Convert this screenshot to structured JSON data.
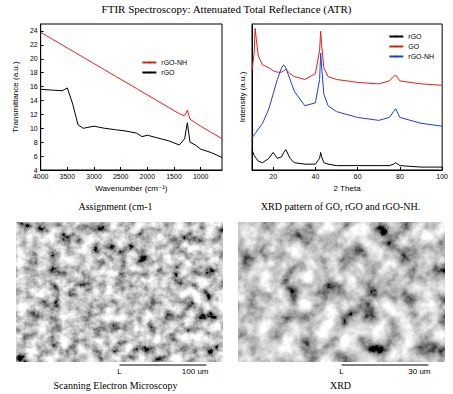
{
  "title": "FTIR Spectroscopy: Attenuated Total Reflectance (ATR)",
  "chart_data": [
    {
      "type": "line",
      "x_label": "Wavenumber (cm⁻¹)",
      "y_label": "Transmittance (a.u.)",
      "x": [
        4000,
        3800,
        3600,
        3500,
        3400,
        3300,
        3200,
        3000,
        2800,
        2600,
        2400,
        2200,
        2100,
        2000,
        1800,
        1600,
        1400,
        1300,
        1250,
        1200,
        1100,
        1000,
        800,
        600
      ],
      "series": [
        {
          "name": "rGO-NH",
          "color": "#e0201b",
          "values": [
            23.8,
            22.9,
            22.0,
            21.55,
            21.1,
            20.65,
            20.2,
            19.3,
            18.4,
            17.5,
            16.6,
            15.7,
            15.25,
            14.8,
            13.9,
            13.0,
            12.1,
            11.8,
            12.6,
            11.3,
            10.8,
            10.3,
            9.4,
            8.5
          ]
        },
        {
          "name": "rGO",
          "color": "#000000",
          "values": [
            15.6,
            15.5,
            15.4,
            15.8,
            13.5,
            10.5,
            10.0,
            10.3,
            10.0,
            9.8,
            9.6,
            9.3,
            8.8,
            9.0,
            8.6,
            8.2,
            7.6,
            8.5,
            10.8,
            8.0,
            7.6,
            7.0,
            6.5,
            5.8
          ]
        }
      ],
      "xlim": [
        4000,
        600
      ],
      "xticks": [
        4000,
        3500,
        3000,
        2500,
        2000,
        1500,
        1000
      ],
      "ylim": [
        4,
        25
      ],
      "yticks": [
        4,
        6,
        8,
        10,
        12,
        14,
        16,
        18,
        20,
        22,
        24
      ],
      "grid": false,
      "legend": "right"
    },
    {
      "type": "line",
      "x_label": "2 Theta",
      "y_label": "Intensity (a.u.)",
      "x": [
        10,
        11,
        11.5,
        12,
        13,
        15,
        18,
        20,
        22,
        24,
        25,
        26,
        28,
        30,
        35,
        40,
        42,
        42.5,
        43,
        44,
        46,
        50,
        60,
        70,
        75,
        77,
        78,
        80,
        90,
        100
      ],
      "series": [
        {
          "name": "rGO",
          "color": "#000000",
          "values": [
            14,
            10,
            9,
            8,
            6,
            5,
            8,
            12,
            8,
            9,
            12,
            14,
            8,
            5,
            4,
            4,
            8,
            12,
            9,
            5,
            4,
            3,
            3,
            3,
            3,
            4,
            5,
            3,
            2,
            2
          ]
        },
        {
          "name": "GO",
          "color": "#e0201b",
          "values": [
            68,
            80,
            97,
            90,
            78,
            72,
            70,
            68,
            67,
            67,
            68,
            69,
            66,
            64,
            62,
            66,
            82,
            95,
            85,
            70,
            64,
            62,
            60,
            59,
            61,
            64,
            65,
            61,
            59,
            58
          ]
        },
        {
          "name": "rGO-NH",
          "color": "#1f3fd0",
          "values": [
            22,
            24,
            25,
            26,
            28,
            32,
            42,
            52,
            62,
            70,
            72,
            70,
            62,
            54,
            44,
            46,
            62,
            80,
            70,
            52,
            44,
            40,
            36,
            34,
            36,
            40,
            42,
            36,
            32,
            30
          ]
        }
      ],
      "xlim": [
        10,
        100
      ],
      "xticks": [
        20,
        40,
        60,
        80,
        100
      ],
      "ylim": [
        0,
        100
      ],
      "tick_labels": "x",
      "grid": false,
      "legend": "upper right"
    }
  ],
  "captions": [
    "Assignment (cm-1",
    "XRD pattern of GO, rGO and rGO-NH.",
    "Scanning Electron Microscopy",
    "XRD"
  ],
  "micrographs": [
    {
      "scale_label": "L",
      "scale_text": "100 um"
    },
    {
      "scale_label": "L",
      "scale_text": "30 um"
    }
  ]
}
